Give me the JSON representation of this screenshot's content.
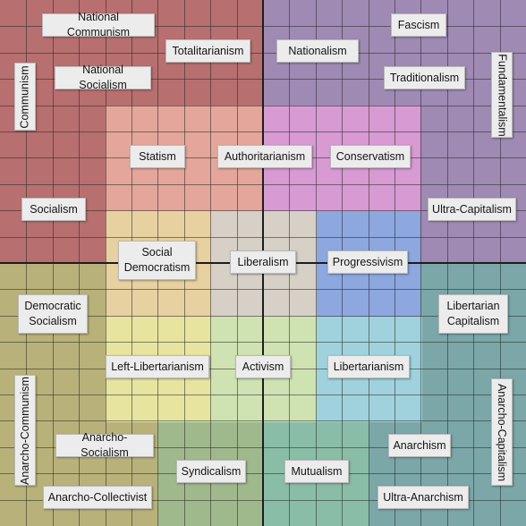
{
  "chart_data": {
    "type": "political-compass-grid",
    "grid": "on",
    "quadrant_colors": {
      "top_left": "#b86f6f",
      "top_right": "#9f8ab4",
      "bottom_left": "#b8b27a",
      "bottom_right": "#7ba7a8",
      "center": "#d6d0c7",
      "statism_zone": "#e4a69a",
      "conservatism_zone": "#d79ad2",
      "progressivism_zone": "#8da7df",
      "left_liberty_zone": "#e7e4a0",
      "activism_zone": "#cfe2b1",
      "libertarian_zone": "#9fd2dc",
      "syndicalism_zone": "#9fb98d",
      "mutualism_zone": "#89bda7"
    },
    "labels": [
      {
        "id": "national-communism",
        "text": "National Communism"
      },
      {
        "id": "totalitarianism",
        "text": "Totalitarianism"
      },
      {
        "id": "nationalism",
        "text": "Nationalism"
      },
      {
        "id": "fascism",
        "text": "Fascism"
      },
      {
        "id": "communism",
        "text": "Communism"
      },
      {
        "id": "national-socialism",
        "text": "National Socialism"
      },
      {
        "id": "traditionalism",
        "text": "Traditionalism"
      },
      {
        "id": "fundamentalism",
        "text": "Fundamentalism"
      },
      {
        "id": "statism",
        "text": "Statism"
      },
      {
        "id": "authoritarianism",
        "text": "Authoritarianism"
      },
      {
        "id": "conservatism",
        "text": "Conservatism"
      },
      {
        "id": "socialism",
        "text": "Socialism"
      },
      {
        "id": "ultra-capitalism",
        "text": "Ultra-Capitalism"
      },
      {
        "id": "social-democratism",
        "text": "Social\nDemocratism"
      },
      {
        "id": "liberalism",
        "text": "Liberalism"
      },
      {
        "id": "progressivism",
        "text": "Progressivism"
      },
      {
        "id": "democratic-socialism",
        "text": "Democratic\nSocialism"
      },
      {
        "id": "libertarian-capitalism",
        "text": "Libertarian\nCapitalism"
      },
      {
        "id": "left-libertarianism",
        "text": "Left-Libertarianism"
      },
      {
        "id": "activism",
        "text": "Activism"
      },
      {
        "id": "libertarianism",
        "text": "Libertarianism"
      },
      {
        "id": "anarcho-communism",
        "text": "Anarcho-Communism"
      },
      {
        "id": "anarcho-capitalism",
        "text": "Anarcho-Capitalism"
      },
      {
        "id": "anarcho-socialism",
        "text": "Anarcho-Socialism"
      },
      {
        "id": "anarchism",
        "text": "Anarchism"
      },
      {
        "id": "syndicalism",
        "text": "Syndicalism"
      },
      {
        "id": "mutualism",
        "text": "Mutualism"
      },
      {
        "id": "anarcho-collectivist",
        "text": "Anarcho-Collectivist"
      },
      {
        "id": "ultra-anarchism",
        "text": "Ultra-Anarchism"
      }
    ]
  }
}
